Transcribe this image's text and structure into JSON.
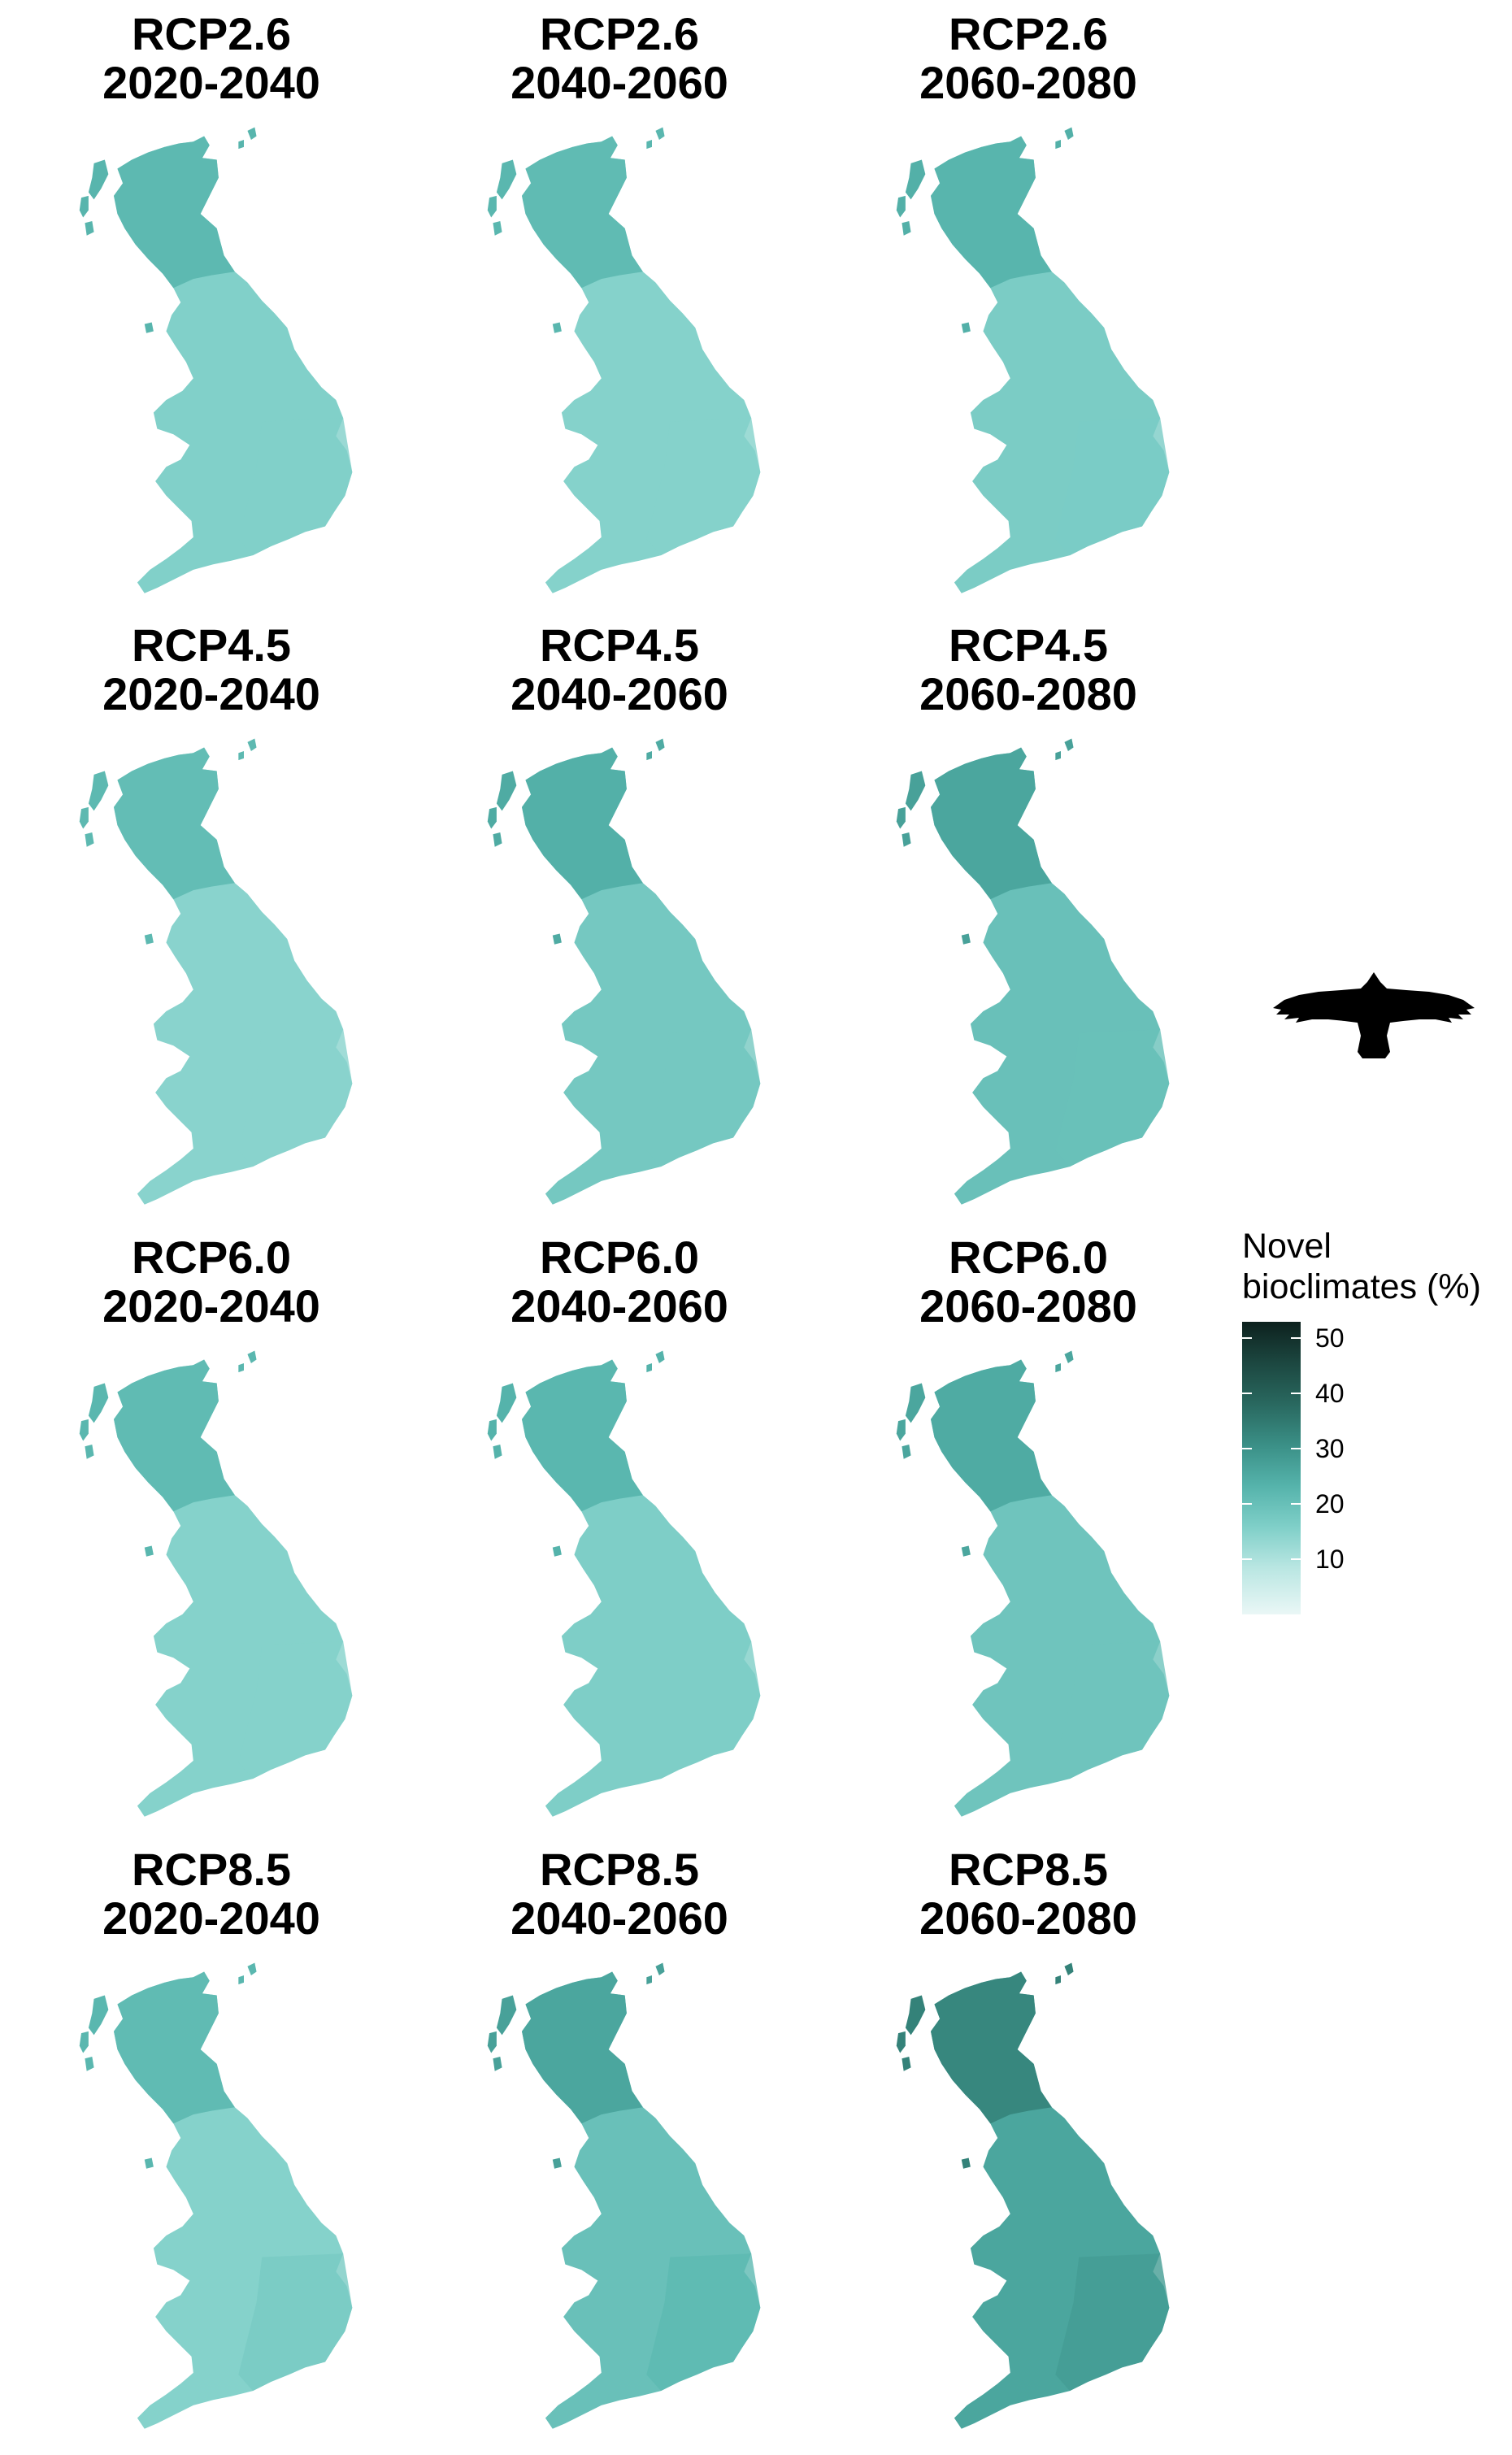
{
  "panels": [
    {
      "rcp": "RCP2.6",
      "period": "2020-2040",
      "fill_level": 0.28
    },
    {
      "rcp": "RCP2.6",
      "period": "2040-2060",
      "fill_level": 0.27
    },
    {
      "rcp": "RCP2.6",
      "period": "2060-2080",
      "fill_level": 0.3
    },
    {
      "rcp": "RCP4.5",
      "period": "2020-2040",
      "fill_level": 0.26
    },
    {
      "rcp": "RCP4.5",
      "period": "2040-2060",
      "fill_level": 0.32
    },
    {
      "rcp": "RCP4.5",
      "period": "2060-2080",
      "fill_level": 0.36
    },
    {
      "rcp": "RCP6.0",
      "period": "2020-2040",
      "fill_level": 0.27
    },
    {
      "rcp": "RCP6.0",
      "period": "2040-2060",
      "fill_level": 0.29
    },
    {
      "rcp": "RCP6.0",
      "period": "2060-2080",
      "fill_level": 0.34
    },
    {
      "rcp": "RCP8.5",
      "period": "2020-2040",
      "fill_level": 0.27
    },
    {
      "rcp": "RCP8.5",
      "period": "2040-2060",
      "fill_level": 0.36
    },
    {
      "rcp": "RCP8.5",
      "period": "2060-2080",
      "fill_level": 0.48
    }
  ],
  "legend": {
    "title_line1": "Novel",
    "title_line2": "bioclimates (%)",
    "ticks": [
      "50",
      "40",
      "30",
      "20",
      "10"
    ],
    "tick_values": [
      50,
      40,
      30,
      20,
      10
    ],
    "range": [
      0,
      53
    ]
  },
  "icon": "bird-silhouette-icon",
  "colors": {
    "scale_low": "#eaf7f6",
    "scale_mid": "#55b3ab",
    "scale_high": "#0d211e"
  }
}
